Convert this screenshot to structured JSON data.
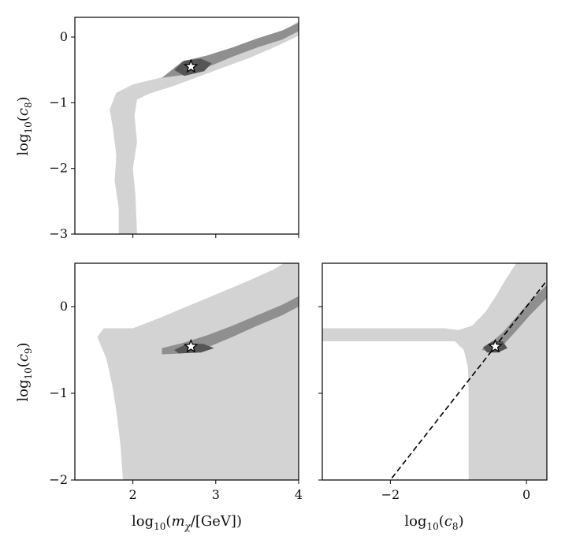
{
  "figure": {
    "layout": "corner plot, 2x2 lower triangle"
  },
  "colors": {
    "outer_region": "#d3d3d3",
    "middle_region": "#8f8f8f",
    "inner_region": "#555555",
    "best_fit_marker": "#ffffff",
    "frame": "#000000",
    "diagonal_line": "#000000"
  },
  "chart_data": [
    {
      "type": "contour",
      "panel": "top-left",
      "xlabel": "",
      "ylabel": "log10(c8)",
      "xlim": [
        1.3,
        4.0
      ],
      "ylim": [
        -3.0,
        0.3
      ],
      "x_ticks": [
        2,
        3,
        4
      ],
      "y_ticks": [
        0,
        -1,
        -2,
        -3
      ],
      "y_tick_labels": [
        "0",
        "−1",
        "−2",
        "−3"
      ],
      "best_fit": {
        "x": 2.7,
        "y": -0.45,
        "marker": "star"
      },
      "regions": [
        {
          "level": "outer",
          "color": "#d3d3d3",
          "polygon": [
            [
              1.83,
              -3.0
            ],
            [
              1.83,
              -2.6
            ],
            [
              1.78,
              -2.2
            ],
            [
              1.8,
              -1.8
            ],
            [
              1.76,
              -1.4
            ],
            [
              1.72,
              -1.1
            ],
            [
              1.8,
              -0.85
            ],
            [
              2.0,
              -0.72
            ],
            [
              2.3,
              -0.63
            ],
            [
              2.6,
              -0.52
            ],
            [
              2.9,
              -0.36
            ],
            [
              3.2,
              -0.22
            ],
            [
              3.5,
              -0.08
            ],
            [
              3.8,
              0.08
            ],
            [
              4.0,
              0.24
            ],
            [
              4.0,
              0.02
            ],
            [
              3.7,
              -0.16
            ],
            [
              3.4,
              -0.32
            ],
            [
              3.1,
              -0.46
            ],
            [
              2.8,
              -0.6
            ],
            [
              2.5,
              -0.74
            ],
            [
              2.2,
              -0.86
            ],
            [
              2.05,
              -0.95
            ],
            [
              2.02,
              -1.2
            ],
            [
              2.05,
              -1.6
            ],
            [
              2.0,
              -2.0
            ],
            [
              2.03,
              -2.4
            ],
            [
              2.05,
              -3.0
            ]
          ]
        },
        {
          "level": "middle",
          "color": "#8f8f8f",
          "polygon": [
            [
              2.35,
              -0.62
            ],
            [
              2.6,
              -0.37
            ],
            [
              2.9,
              -0.28
            ],
            [
              3.2,
              -0.16
            ],
            [
              3.5,
              -0.02
            ],
            [
              3.8,
              0.1
            ],
            [
              4.0,
              0.22
            ],
            [
              4.0,
              0.09
            ],
            [
              3.8,
              -0.04
            ],
            [
              3.5,
              -0.16
            ],
            [
              3.2,
              -0.3
            ],
            [
              2.9,
              -0.46
            ],
            [
              2.6,
              -0.58
            ]
          ]
        },
        {
          "level": "inner",
          "color": "#555555",
          "polygon": [
            [
              2.5,
              -0.5
            ],
            [
              2.62,
              -0.36
            ],
            [
              2.82,
              -0.33
            ],
            [
              2.95,
              -0.4
            ],
            [
              2.86,
              -0.52
            ],
            [
              2.62,
              -0.59
            ]
          ]
        }
      ]
    },
    {
      "type": "contour",
      "panel": "bottom-left",
      "xlabel": "log10(mχ/[GeV])",
      "ylabel": "log10(c9)",
      "xlim": [
        1.3,
        4.0
      ],
      "ylim": [
        -2.0,
        0.5
      ],
      "x_ticks": [
        2,
        3,
        4
      ],
      "x_tick_labels": [
        "2",
        "3",
        "4"
      ],
      "y_ticks": [
        0,
        -1,
        -2
      ],
      "y_tick_labels": [
        "0",
        "−1",
        "−2"
      ],
      "best_fit": {
        "x": 2.7,
        "y": -0.46,
        "marker": "star"
      },
      "regions": [
        {
          "level": "outer",
          "color": "#d3d3d3",
          "polygon": [
            [
              1.88,
              -2.0
            ],
            [
              1.85,
              -1.6
            ],
            [
              1.8,
              -1.2
            ],
            [
              1.75,
              -0.9
            ],
            [
              1.68,
              -0.6
            ],
            [
              1.57,
              -0.35
            ],
            [
              1.65,
              -0.25
            ],
            [
              2.0,
              -0.25
            ],
            [
              2.3,
              -0.14
            ],
            [
              2.7,
              0.02
            ],
            [
              3.0,
              0.14
            ],
            [
              3.4,
              0.3
            ],
            [
              3.7,
              0.43
            ],
            [
              3.82,
              0.5
            ],
            [
              4.0,
              0.5
            ],
            [
              4.0,
              -2.0
            ]
          ]
        },
        {
          "level": "middle",
          "color": "#8f8f8f",
          "polygon": [
            [
              2.35,
              -0.48
            ],
            [
              2.6,
              -0.42
            ],
            [
              2.9,
              -0.33
            ],
            [
              3.2,
              -0.22
            ],
            [
              3.5,
              -0.1
            ],
            [
              3.8,
              0.02
            ],
            [
              4.0,
              0.12
            ],
            [
              4.0,
              0.0
            ],
            [
              3.8,
              -0.1
            ],
            [
              3.5,
              -0.22
            ],
            [
              3.2,
              -0.35
            ],
            [
              2.9,
              -0.47
            ],
            [
              2.6,
              -0.54
            ],
            [
              2.35,
              -0.55
            ]
          ]
        },
        {
          "level": "inner",
          "color": "#555555",
          "polygon": [
            [
              2.5,
              -0.5
            ],
            [
              2.65,
              -0.43
            ],
            [
              2.85,
              -0.43
            ],
            [
              2.98,
              -0.48
            ],
            [
              2.82,
              -0.53
            ],
            [
              2.55,
              -0.54
            ]
          ]
        }
      ]
    },
    {
      "type": "contour",
      "panel": "bottom-right",
      "xlabel": "log10(c8)",
      "ylabel": "",
      "xlim": [
        -3.0,
        0.3
      ],
      "ylim": [
        -2.0,
        0.5
      ],
      "x_ticks": [
        -2,
        0
      ],
      "x_tick_labels": [
        "−2",
        "0"
      ],
      "y_ticks": [
        0,
        -1,
        -2
      ],
      "best_fit": {
        "x": -0.46,
        "y": -0.46,
        "marker": "star"
      },
      "reference_line": {
        "style": "dashed",
        "slope": 1,
        "intercept": 0
      },
      "regions": [
        {
          "level": "outer",
          "color": "#d3d3d3",
          "polygon": [
            [
              -3.0,
              -0.25
            ],
            [
              -1.2,
              -0.25
            ],
            [
              -1.0,
              -0.27
            ],
            [
              -0.8,
              -0.22
            ],
            [
              -0.6,
              -0.06
            ],
            [
              -0.45,
              0.12
            ],
            [
              -0.3,
              0.32
            ],
            [
              -0.15,
              0.5
            ],
            [
              0.3,
              0.5
            ],
            [
              0.3,
              -2.0
            ],
            [
              -0.85,
              -2.0
            ],
            [
              -0.85,
              -1.0
            ],
            [
              -0.86,
              -0.7
            ],
            [
              -0.92,
              -0.5
            ],
            [
              -1.05,
              -0.4
            ],
            [
              -1.2,
              -0.4
            ],
            [
              -3.0,
              -0.4
            ]
          ]
        },
        {
          "level": "middle",
          "color": "#8f8f8f",
          "polygon": [
            [
              -0.66,
              -0.5
            ],
            [
              -0.5,
              -0.4
            ],
            [
              -0.35,
              -0.3
            ],
            [
              -0.15,
              -0.12
            ],
            [
              0.05,
              0.06
            ],
            [
              0.3,
              0.25
            ],
            [
              0.3,
              0.1
            ],
            [
              0.05,
              -0.1
            ],
            [
              -0.15,
              -0.28
            ],
            [
              -0.35,
              -0.45
            ],
            [
              -0.5,
              -0.52
            ]
          ]
        },
        {
          "level": "inner",
          "color": "#555555",
          "polygon": [
            [
              -0.64,
              -0.47
            ],
            [
              -0.5,
              -0.4
            ],
            [
              -0.35,
              -0.4
            ],
            [
              -0.28,
              -0.48
            ],
            [
              -0.42,
              -0.53
            ],
            [
              -0.58,
              -0.53
            ]
          ]
        }
      ]
    }
  ]
}
